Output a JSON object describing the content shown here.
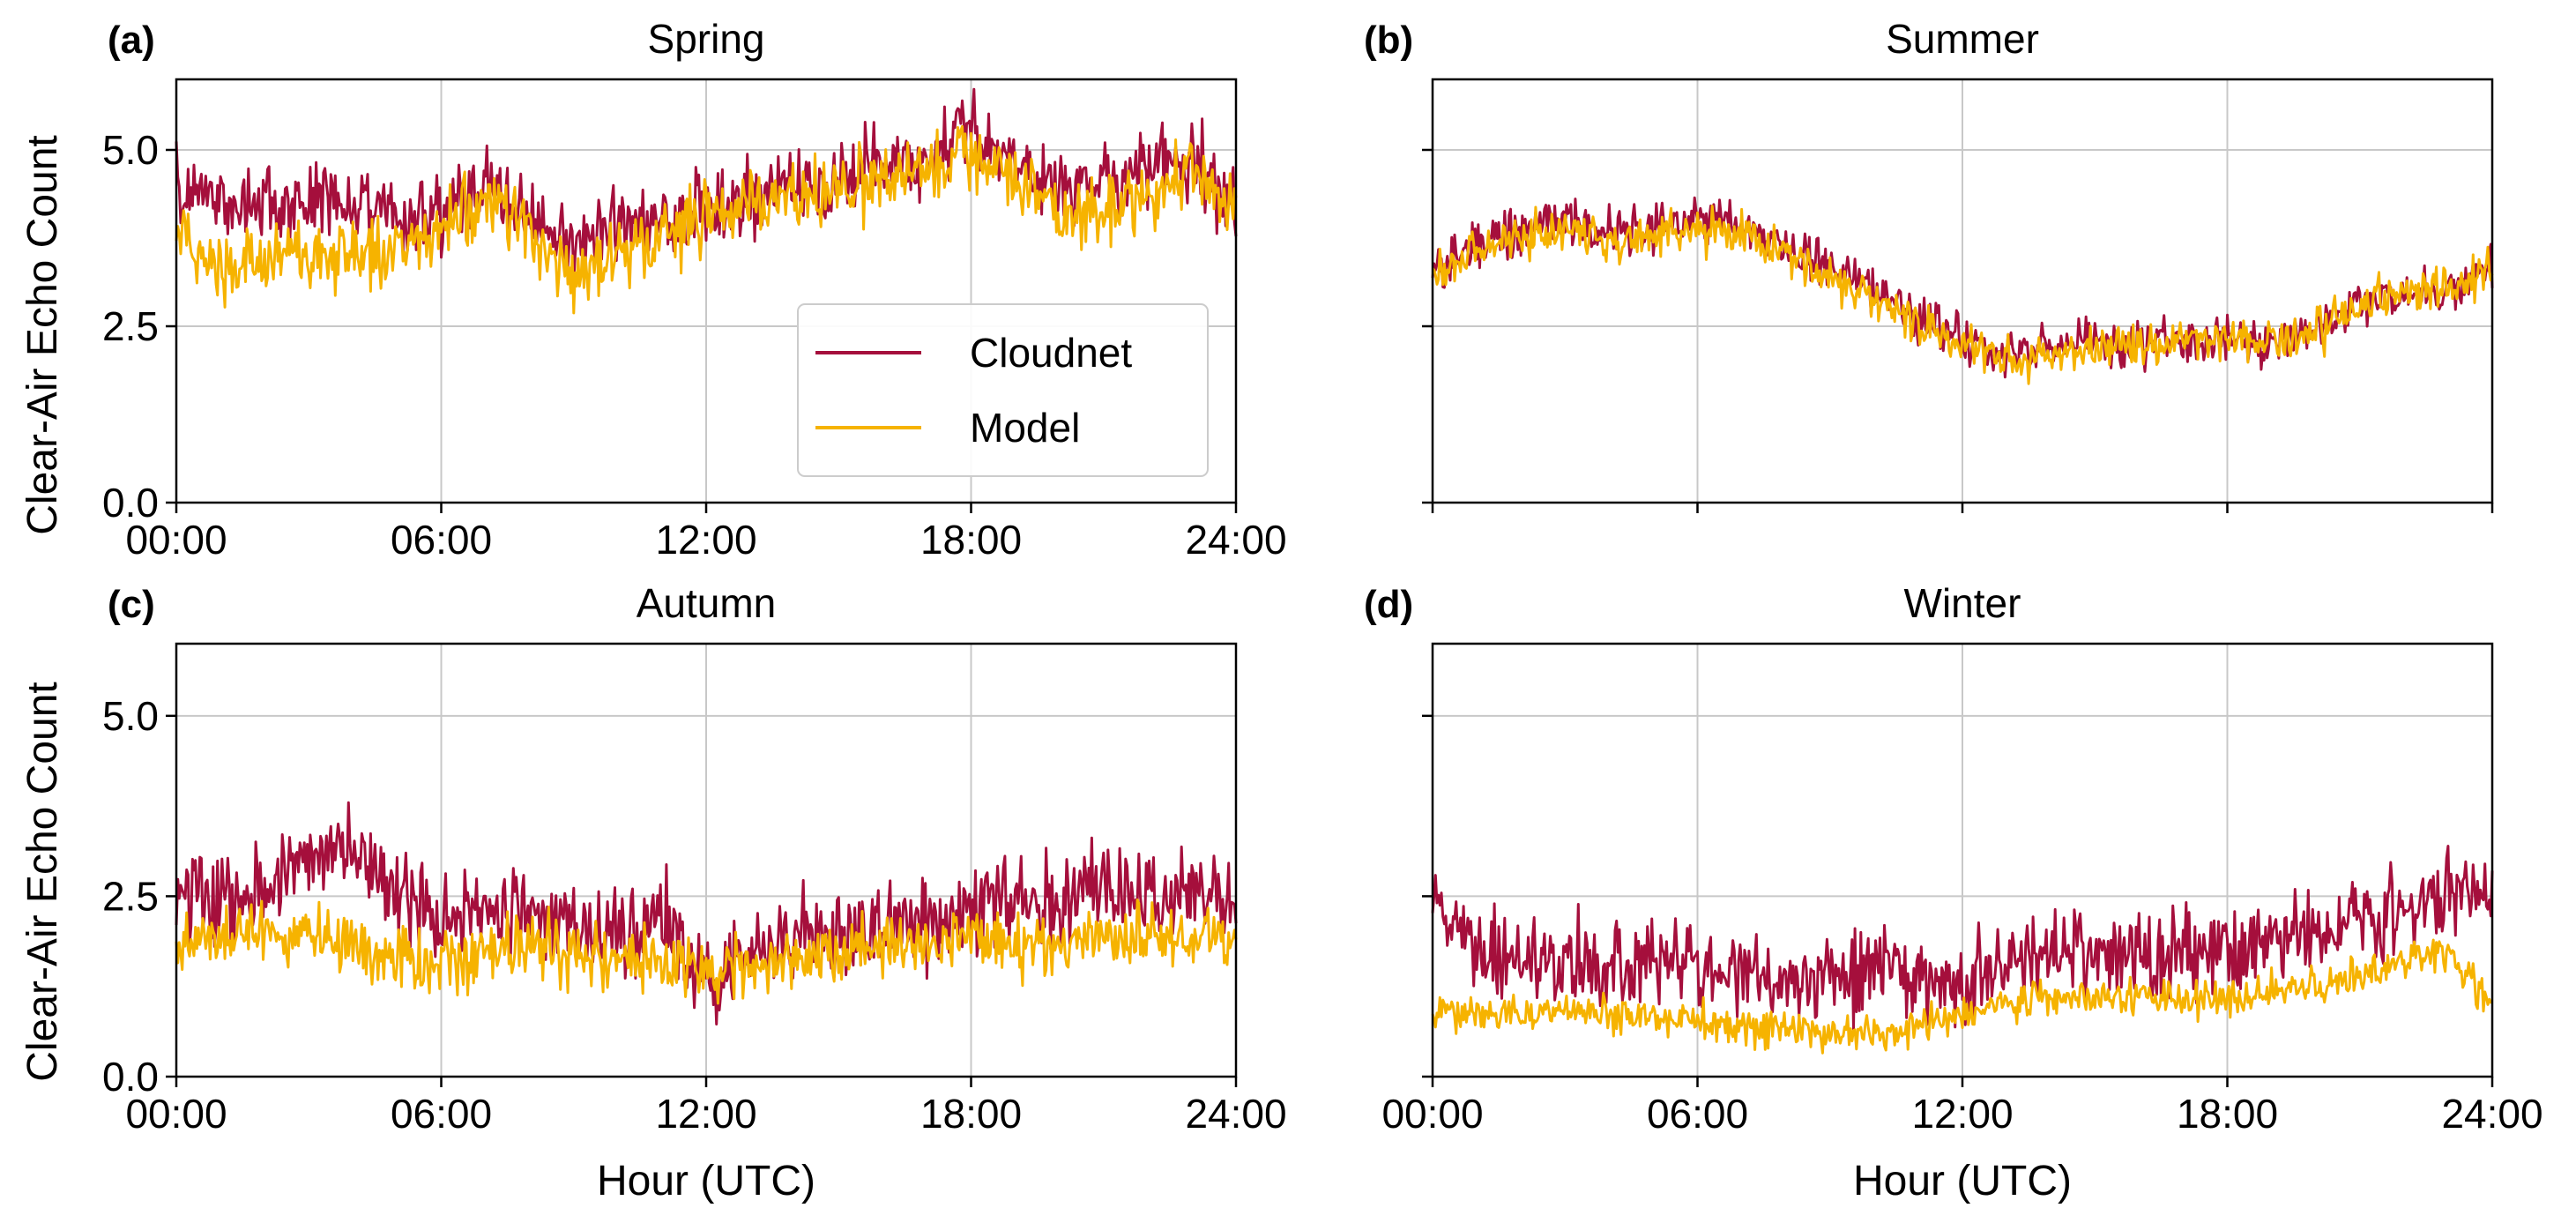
{
  "figure": {
    "ylabel": "Clear-Air Echo Count",
    "xlabel": "Hour (UTC)",
    "legend": {
      "placement": "center-right of panel (a)"
    }
  },
  "chart_data": [
    {
      "type": "line",
      "panel": "(a)",
      "title": "Spring",
      "xlabel": "",
      "ylabel": "Clear-Air Echo Count",
      "x_ticks": [
        "00:00",
        "06:00",
        "12:00",
        "18:00",
        "24:00"
      ],
      "y_ticks": [
        "0.0",
        "2.5",
        "5.0"
      ],
      "xlim": [
        0,
        24
      ],
      "ylim": [
        0,
        6
      ],
      "grid": true,
      "legend": [
        "Cloudnet",
        "Model"
      ],
      "series": [
        {
          "name": "Cloudnet",
          "color": "#a50f3c",
          "noise": 0.28,
          "x": [
            0,
            1,
            2,
            3,
            4,
            5,
            6,
            7,
            8,
            9,
            10,
            11,
            12,
            13,
            14,
            15,
            16,
            17,
            18,
            19,
            20,
            21,
            22,
            23,
            24
          ],
          "values": [
            4.5,
            4.3,
            4.2,
            4.3,
            4.2,
            4.0,
            4.1,
            4.4,
            4.1,
            3.6,
            3.9,
            4.0,
            4.2,
            4.3,
            4.5,
            4.6,
            4.8,
            5.0,
            5.4,
            4.8,
            4.4,
            4.6,
            4.7,
            4.8,
            4.3
          ]
        },
        {
          "name": "Model",
          "color": "#f6b300",
          "noise": 0.25,
          "x": [
            0,
            1,
            2,
            3,
            4,
            5,
            6,
            7,
            8,
            9,
            10,
            11,
            12,
            13,
            14,
            15,
            16,
            17,
            18,
            19,
            20,
            21,
            22,
            23,
            24
          ],
          "values": [
            3.8,
            3.4,
            3.5,
            3.4,
            3.6,
            3.5,
            3.9,
            4.3,
            3.9,
            3.2,
            3.5,
            3.8,
            4.1,
            4.2,
            4.3,
            4.4,
            4.6,
            4.7,
            5.0,
            4.5,
            4.1,
            4.2,
            4.4,
            4.8,
            4.0
          ]
        }
      ]
    },
    {
      "type": "line",
      "panel": "(b)",
      "title": "Summer",
      "xlabel": "",
      "ylabel": "",
      "x_ticks": [],
      "y_ticks": [],
      "xlim": [
        0,
        24
      ],
      "ylim": [
        0,
        6
      ],
      "grid": true,
      "series": [
        {
          "name": "Cloudnet",
          "color": "#a50f3c",
          "noise": 0.17,
          "x": [
            0,
            1,
            2,
            3,
            4,
            5,
            6,
            7,
            8,
            9,
            10,
            11,
            12,
            13,
            14,
            15,
            16,
            17,
            18,
            19,
            20,
            21,
            22,
            23,
            24
          ],
          "values": [
            3.3,
            3.7,
            3.9,
            4.0,
            3.8,
            3.9,
            4.1,
            3.9,
            3.6,
            3.3,
            3.0,
            2.6,
            2.3,
            2.1,
            2.2,
            2.3,
            2.3,
            2.3,
            2.3,
            2.2,
            2.5,
            2.8,
            3.0,
            3.0,
            3.3
          ]
        },
        {
          "name": "Model",
          "color": "#f6b300",
          "noise": 0.16,
          "x": [
            0,
            1,
            2,
            3,
            4,
            5,
            6,
            7,
            8,
            9,
            10,
            11,
            12,
            13,
            14,
            15,
            16,
            17,
            18,
            19,
            20,
            21,
            22,
            23,
            24
          ],
          "values": [
            3.2,
            3.6,
            3.8,
            3.9,
            3.7,
            3.8,
            3.9,
            3.8,
            3.5,
            3.2,
            2.9,
            2.5,
            2.2,
            2.0,
            2.1,
            2.2,
            2.2,
            2.3,
            2.3,
            2.2,
            2.4,
            2.8,
            3.0,
            3.0,
            3.3
          ]
        }
      ]
    },
    {
      "type": "line",
      "panel": "(c)",
      "title": "Autumn",
      "xlabel": "Hour (UTC)",
      "ylabel": "Clear-Air Echo Count",
      "x_ticks": [
        "00:00",
        "06:00",
        "12:00",
        "18:00",
        "24:00"
      ],
      "y_ticks": [
        "0.0",
        "2.5",
        "5.0"
      ],
      "xlim": [
        0,
        24
      ],
      "ylim": [
        0,
        6
      ],
      "grid": true,
      "series": [
        {
          "name": "Cloudnet",
          "color": "#a50f3c",
          "noise": 0.32,
          "x": [
            0,
            1,
            2,
            3,
            4,
            5,
            6,
            7,
            8,
            9,
            10,
            11,
            12,
            13,
            14,
            15,
            16,
            17,
            18,
            19,
            20,
            21,
            22,
            23,
            24
          ],
          "values": [
            2.6,
            2.4,
            2.6,
            3.0,
            3.2,
            2.5,
            2.2,
            2.3,
            2.3,
            2.0,
            1.9,
            2.1,
            1.5,
            1.8,
            2.0,
            2.0,
            2.0,
            2.1,
            2.3,
            2.5,
            2.4,
            2.6,
            2.5,
            2.5,
            2.5
          ]
        },
        {
          "name": "Model",
          "color": "#f6b300",
          "noise": 0.22,
          "x": [
            0,
            1,
            2,
            3,
            4,
            5,
            6,
            7,
            8,
            9,
            10,
            11,
            12,
            13,
            14,
            15,
            16,
            17,
            18,
            19,
            20,
            21,
            22,
            23,
            24
          ],
          "values": [
            1.9,
            1.9,
            2.0,
            2.0,
            1.8,
            1.7,
            1.6,
            1.7,
            1.8,
            1.7,
            1.6,
            1.7,
            1.5,
            1.6,
            1.6,
            1.7,
            1.8,
            1.8,
            1.9,
            1.8,
            1.8,
            1.9,
            1.9,
            1.9,
            1.9
          ]
        }
      ]
    },
    {
      "type": "line",
      "panel": "(d)",
      "title": "Winter",
      "xlabel": "Hour (UTC)",
      "ylabel": "",
      "x_ticks": [
        "00:00",
        "06:00",
        "12:00",
        "18:00",
        "24:00"
      ],
      "y_ticks": [],
      "xlim": [
        0,
        24
      ],
      "ylim": [
        0,
        6
      ],
      "grid": true,
      "series": [
        {
          "name": "Cloudnet",
          "color": "#a50f3c",
          "noise": 0.3,
          "x": [
            0,
            1,
            2,
            3,
            4,
            5,
            6,
            7,
            8,
            9,
            10,
            11,
            12,
            13,
            14,
            15,
            16,
            17,
            18,
            19,
            20,
            21,
            22,
            23,
            24
          ],
          "values": [
            2.4,
            1.7,
            1.6,
            1.6,
            1.5,
            1.7,
            1.6,
            1.4,
            1.3,
            1.4,
            1.5,
            1.4,
            1.3,
            1.6,
            1.7,
            1.8,
            1.7,
            1.8,
            1.8,
            1.9,
            2.0,
            2.2,
            2.4,
            2.6,
            2.5
          ]
        },
        {
          "name": "Model",
          "color": "#f6b300",
          "noise": 0.13,
          "x": [
            0,
            1,
            2,
            3,
            4,
            5,
            6,
            7,
            8,
            9,
            10,
            11,
            12,
            13,
            14,
            15,
            16,
            17,
            18,
            19,
            20,
            21,
            22,
            23,
            24
          ],
          "values": [
            1.0,
            0.9,
            0.9,
            0.9,
            0.85,
            0.8,
            0.8,
            0.7,
            0.65,
            0.6,
            0.6,
            0.7,
            0.9,
            1.0,
            1.1,
            1.1,
            1.1,
            1.1,
            1.1,
            1.2,
            1.3,
            1.4,
            1.6,
            1.7,
            1.0
          ]
        }
      ]
    }
  ]
}
